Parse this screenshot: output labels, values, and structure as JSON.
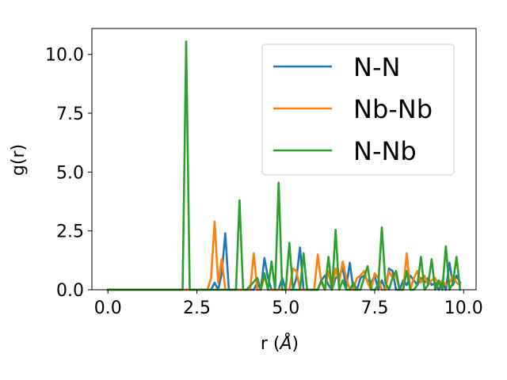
{
  "chart_data": {
    "type": "line",
    "xlabel_main": "r (",
    "xlabel_unit": "Å",
    "xlabel_close": ")",
    "ylabel": "g(r)",
    "xlim": [
      -0.45,
      10.35
    ],
    "ylim": [
      0,
      11.1
    ],
    "xticks": [
      0.0,
      2.5,
      5.0,
      7.5,
      10.0
    ],
    "xtick_labels": [
      "0.0",
      "2.5",
      "5.0",
      "7.5",
      "10.0"
    ],
    "yticks": [
      0.0,
      2.5,
      5.0,
      7.5,
      10.0
    ],
    "ytick_labels": [
      "0.0",
      "2.5",
      "5.0",
      "7.5",
      "10.0"
    ],
    "legend_position": "top-right",
    "series": [
      {
        "name": "N-N",
        "color": "#1f77b4",
        "x": [
          0.0,
          2.7,
          2.9,
          3.0,
          3.1,
          3.2,
          3.3,
          3.4,
          3.5,
          3.6,
          3.7,
          3.8,
          4.0,
          4.1,
          4.2,
          4.3,
          4.4,
          4.5,
          4.6,
          4.8,
          4.9,
          5.0,
          5.1,
          5.2,
          5.3,
          5.4,
          5.5,
          5.6,
          5.8,
          5.9,
          6.0,
          6.1,
          6.2,
          6.3,
          6.4,
          6.5,
          6.6,
          6.7,
          6.8,
          6.9,
          7.0,
          7.1,
          7.2,
          7.3,
          7.4,
          7.5,
          7.6,
          7.7,
          7.8,
          7.9,
          8.0,
          8.1,
          8.2,
          8.3,
          8.4,
          8.5,
          8.6,
          8.7,
          8.8,
          8.9,
          9.0,
          9.1,
          9.2,
          9.3,
          9.4,
          9.5,
          9.6,
          9.7,
          9.8,
          9.9
        ],
        "y": [
          0.0,
          0.0,
          0.0,
          0.3,
          0.0,
          0.7,
          2.4,
          0.0,
          0.0,
          0.0,
          0.0,
          0.0,
          0.0,
          0.0,
          0.3,
          0.0,
          1.35,
          0.5,
          0.0,
          0.0,
          0.5,
          0.0,
          0.0,
          0.0,
          0.5,
          1.8,
          0.0,
          0.0,
          0.0,
          0.0,
          0.4,
          0.6,
          0.2,
          0.0,
          0.5,
          0.6,
          0.9,
          0.1,
          1.15,
          0.0,
          0.0,
          0.5,
          0.6,
          0.4,
          0.3,
          0.6,
          0.0,
          0.4,
          0.0,
          0.9,
          0.8,
          0.0,
          0.0,
          0.4,
          0.2,
          0.6,
          0.4,
          0.2,
          0.5,
          0.3,
          0.5,
          0.2,
          0.3,
          0.0,
          0.3,
          0.0,
          1.15,
          0.2,
          0.6,
          0.3
        ]
      },
      {
        "name": "Nb-Nb",
        "color": "#ff7f0e",
        "x": [
          0.0,
          2.8,
          2.9,
          3.0,
          3.1,
          3.2,
          3.3,
          3.4,
          3.5,
          3.6,
          3.7,
          3.8,
          3.9,
          4.0,
          4.1,
          4.2,
          4.3,
          4.4,
          4.5,
          4.6,
          4.7,
          4.8,
          4.9,
          5.0,
          5.1,
          5.2,
          5.3,
          5.4,
          5.5,
          5.6,
          5.7,
          5.8,
          5.9,
          6.0,
          6.1,
          6.2,
          6.3,
          6.4,
          6.5,
          6.6,
          6.7,
          6.8,
          6.9,
          7.0,
          7.1,
          7.2,
          7.3,
          7.4,
          7.5,
          7.6,
          7.7,
          7.8,
          7.9,
          8.0,
          8.1,
          8.2,
          8.3,
          8.4,
          8.5,
          8.6,
          8.7,
          8.8,
          8.9,
          9.0,
          9.1,
          9.2,
          9.3,
          9.4,
          9.5,
          9.6,
          9.7,
          9.8,
          9.9
        ],
        "y": [
          0.0,
          0.0,
          0.5,
          2.9,
          0.3,
          1.3,
          0.0,
          0.0,
          0.0,
          0.0,
          0.0,
          0.0,
          0.0,
          0.0,
          1.55,
          0.0,
          0.0,
          0.6,
          0.0,
          0.0,
          0.0,
          0.0,
          0.0,
          0.0,
          0.0,
          0.9,
          0.8,
          0.0,
          0.0,
          0.0,
          0.0,
          0.0,
          1.5,
          0.3,
          0.0,
          0.8,
          0.0,
          0.9,
          0.3,
          1.2,
          0.5,
          0.0,
          0.0,
          0.5,
          0.6,
          0.8,
          0.3,
          0.0,
          0.7,
          0.5,
          0.0,
          0.0,
          0.8,
          0.5,
          0.6,
          0.0,
          0.0,
          1.55,
          0.0,
          0.5,
          0.8,
          0.3,
          0.6,
          0.2,
          0.4,
          0.5,
          0.2,
          0.4,
          0.2,
          0.3,
          0.6,
          0.3,
          0.2
        ]
      },
      {
        "name": "N-Nb",
        "color": "#2ca02c",
        "x": [
          0.0,
          2.1,
          2.2,
          2.3,
          2.9,
          3.0,
          3.1,
          3.5,
          3.6,
          3.7,
          3.8,
          3.9,
          4.2,
          4.3,
          4.4,
          4.5,
          4.6,
          4.7,
          4.8,
          4.9,
          5.0,
          5.1,
          5.2,
          5.3,
          5.4,
          5.5,
          5.6,
          5.7,
          5.8,
          5.9,
          6.0,
          6.1,
          6.2,
          6.3,
          6.4,
          6.5,
          6.6,
          6.7,
          6.8,
          6.9,
          7.0,
          7.1,
          7.2,
          7.3,
          7.4,
          7.5,
          7.6,
          7.7,
          7.8,
          7.9,
          8.0,
          8.1,
          8.2,
          8.3,
          8.4,
          8.5,
          8.6,
          8.7,
          8.8,
          8.9,
          9.0,
          9.1,
          9.2,
          9.3,
          9.4,
          9.5,
          9.6,
          9.7,
          9.8,
          9.9
        ],
        "y": [
          0.0,
          0.0,
          10.55,
          0.0,
          0.0,
          0.0,
          0.0,
          0.0,
          0.0,
          3.8,
          0.0,
          0.0,
          0.5,
          0.0,
          0.7,
          0.0,
          1.2,
          0.0,
          4.55,
          0.0,
          0.0,
          2.0,
          0.0,
          0.0,
          0.0,
          1.55,
          0.0,
          0.0,
          0.0,
          0.0,
          0.4,
          0.0,
          1.4,
          0.0,
          2.55,
          0.0,
          0.4,
          0.0,
          0.0,
          0.3,
          0.0,
          0.0,
          0.5,
          1.0,
          0.0,
          0.0,
          0.2,
          2.65,
          0.3,
          0.0,
          0.5,
          0.8,
          0.0,
          0.0,
          0.8,
          0.0,
          0.0,
          0.2,
          1.4,
          0.0,
          0.2,
          1.3,
          0.0,
          0.4,
          0.0,
          1.85,
          0.0,
          0.3,
          1.4,
          0.0
        ]
      }
    ]
  }
}
